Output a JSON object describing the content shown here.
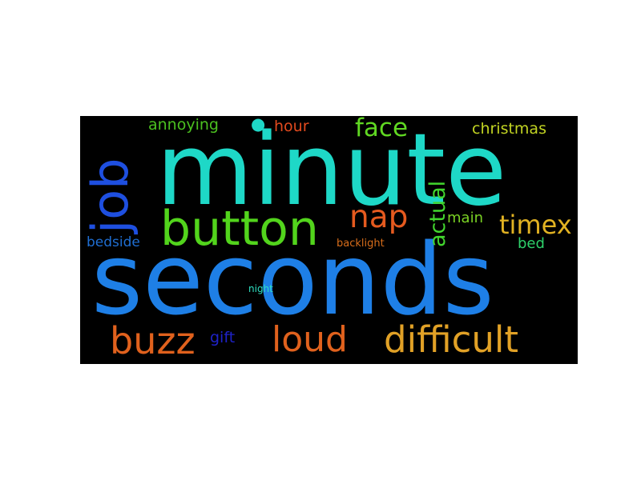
{
  "word_cloud": {
    "words": [
      {
        "text": "minute",
        "color": "#1ed8c7",
        "orientation": "horizontal"
      },
      {
        "text": "seconds",
        "color": "#1e7fe6",
        "orientation": "horizontal"
      },
      {
        "text": "job",
        "color": "#1e4fe0",
        "orientation": "vertical"
      },
      {
        "text": "button",
        "color": "#52d41c",
        "orientation": "horizontal"
      },
      {
        "text": "nap",
        "color": "#e55a1f",
        "orientation": "horizontal"
      },
      {
        "text": "difficult",
        "color": "#e1a126",
        "orientation": "horizontal"
      },
      {
        "text": "loud",
        "color": "#e0611d",
        "orientation": "horizontal"
      },
      {
        "text": "buzz",
        "color": "#e0611d",
        "orientation": "horizontal"
      },
      {
        "text": "face",
        "color": "#60d822",
        "orientation": "horizontal"
      },
      {
        "text": "timex",
        "color": "#e1b222",
        "orientation": "horizontal"
      },
      {
        "text": "actual",
        "color": "#42d62e",
        "orientation": "vertical"
      },
      {
        "text": "annoying",
        "color": "#4bc020",
        "orientation": "horizontal"
      },
      {
        "text": "hour",
        "color": "#e24a1e",
        "orientation": "horizontal"
      },
      {
        "text": "christmas",
        "color": "#c2d422",
        "orientation": "horizontal"
      },
      {
        "text": "main",
        "color": "#7ad224",
        "orientation": "horizontal"
      },
      {
        "text": "bedside",
        "color": "#1f6ed2",
        "orientation": "horizontal"
      },
      {
        "text": "bed",
        "color": "#2ed06a",
        "orientation": "horizontal"
      },
      {
        "text": "backlight",
        "color": "#d66c1a",
        "orientation": "horizontal"
      },
      {
        "text": "gift",
        "color": "#1e22c8",
        "orientation": "horizontal"
      },
      {
        "text": "night",
        "color": "#2ee0c2",
        "orientation": "horizontal"
      },
      {
        "text": "●",
        "color": "#1ed8c7",
        "orientation": "horizontal"
      }
    ]
  }
}
